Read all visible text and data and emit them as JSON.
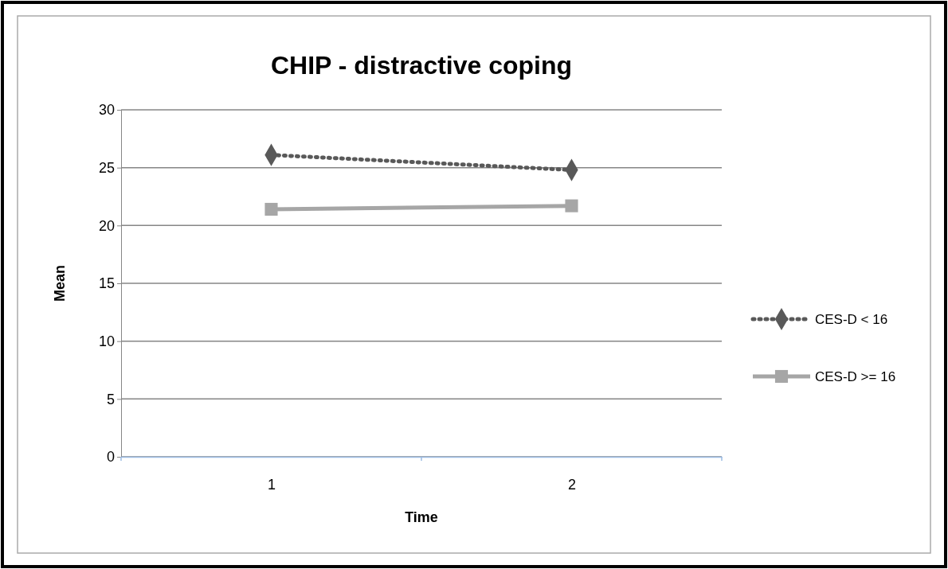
{
  "chart_data": {
    "type": "line",
    "title": "CHIP - distractive coping",
    "xlabel": "Time",
    "ylabel": "Mean",
    "categories": [
      "1",
      "2"
    ],
    "series": [
      {
        "name": "CES-D < 16",
        "color": "#595959",
        "values": [
          26.1,
          24.8
        ],
        "marker": "diamond",
        "line_style": "dotted"
      },
      {
        "name": "CES-D >= 16",
        "color": "#a6a6a6",
        "values": [
          21.4,
          21.7
        ],
        "marker": "square",
        "line_style": "solid"
      }
    ],
    "ylim": [
      0,
      30
    ],
    "yticks": [
      0,
      5,
      10,
      15,
      20,
      25,
      30
    ],
    "grid": "y",
    "legend": "right"
  }
}
